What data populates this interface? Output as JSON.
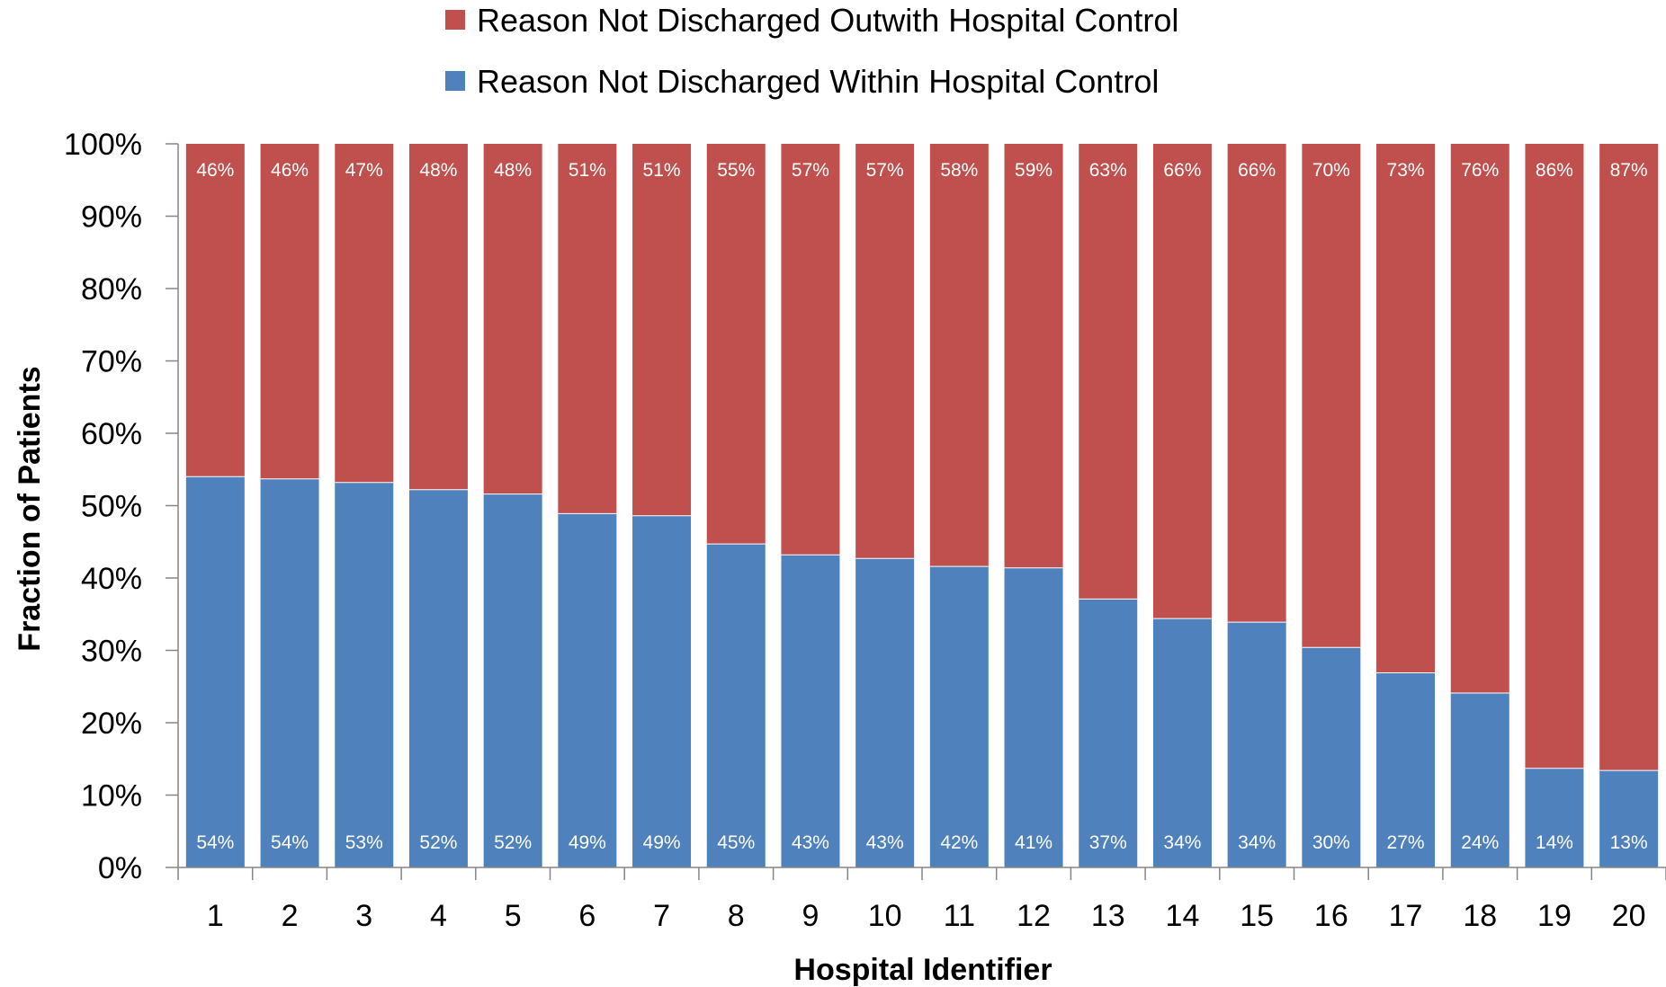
{
  "chart_data": {
    "type": "bar",
    "stacked": true,
    "xlabel": "Hospital Identifier",
    "ylabel": "Fraction of Patients",
    "ylim": [
      0,
      100
    ],
    "yticks": [
      "0%",
      "10%",
      "20%",
      "30%",
      "40%",
      "50%",
      "60%",
      "70%",
      "80%",
      "90%",
      "100%"
    ],
    "categories": [
      "1",
      "2",
      "3",
      "4",
      "5",
      "6",
      "7",
      "8",
      "9",
      "10",
      "11",
      "12",
      "13",
      "14",
      "15",
      "16",
      "17",
      "18",
      "19",
      "20"
    ],
    "legend_position": "top",
    "series": [
      {
        "name": "Reason Not Discharged Within Hospital Control",
        "color": "#4F81BD",
        "values": [
          54.0,
          53.7,
          53.2,
          52.2,
          51.6,
          48.9,
          48.6,
          44.7,
          43.2,
          42.7,
          41.6,
          41.4,
          37.1,
          34.4,
          33.9,
          30.4,
          26.9,
          24.1,
          13.7,
          13.4
        ],
        "labels": [
          "54%",
          "54%",
          "53%",
          "52%",
          "52%",
          "49%",
          "49%",
          "45%",
          "43%",
          "43%",
          "42%",
          "41%",
          "37%",
          "34%",
          "34%",
          "30%",
          "27%",
          "24%",
          "14%",
          "13%"
        ]
      },
      {
        "name": "Reason Not Discharged Outwith Hospital Control",
        "color": "#C0504D",
        "values": [
          46.0,
          46.3,
          46.8,
          47.8,
          48.4,
          51.1,
          51.4,
          55.3,
          56.8,
          57.3,
          58.4,
          58.6,
          62.9,
          65.6,
          66.1,
          69.6,
          73.1,
          75.9,
          86.3,
          86.6
        ],
        "labels": [
          "46%",
          "46%",
          "47%",
          "48%",
          "48%",
          "51%",
          "51%",
          "55%",
          "57%",
          "57%",
          "58%",
          "59%",
          "63%",
          "66%",
          "66%",
          "70%",
          "73%",
          "76%",
          "86%",
          "87%"
        ]
      }
    ]
  }
}
